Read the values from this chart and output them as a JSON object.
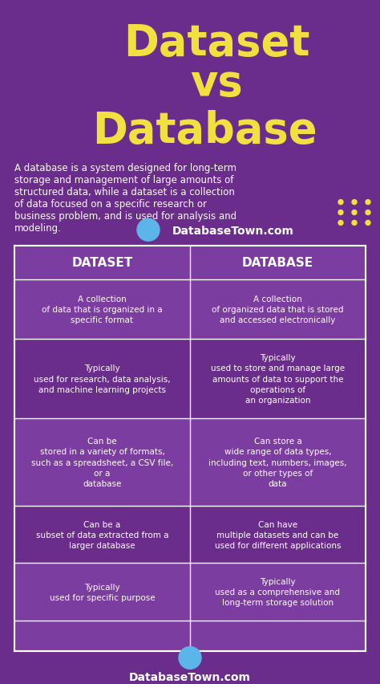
{
  "bg_color": "#6B2D8B",
  "title_line1": "Dataset",
  "title_line2": "vs",
  "title_line3": "Database",
  "title_color": "#F0E040",
  "description": "A database is a system designed for long-term\nstorage and management of large amounts of\nstructured data, while a dataset is a collection\nof data focused on a specific research or\nbusiness problem, and is used for analysis and\nmodeling.",
  "desc_color": "#FFFFFF",
  "website": "DatabaseTown.com",
  "website_color": "#FFFFFF",
  "table_bg": "#7B3DA0",
  "table_border": "#FFFFFF",
  "header_bg": "#7B3DA0",
  "header_text_color": "#FFFFFF",
  "cell_text_color": "#FFFFFF",
  "col1_header": "DATASET",
  "col2_header": "DATABASE",
  "rows": [
    {
      "col1": "A collection\nof data that is organized in a\nspecific format",
      "col2": "A collection\nof organized data that is stored\nand accessed electronically"
    },
    {
      "col1": "Typically\nused for research, data analysis,\nand machine learning projects",
      "col2": "Typically\nused to store and manage large\namounts of data to support the\noperations of\nan organization"
    },
    {
      "col1": "Can be\nstored in a variety of formats,\nsuch as a spreadsheet, a CSV file,\nor a\ndatabase",
      "col2": "Can store a\nwide range of data types,\nincluding text, numbers, images,\nor other types of\ndata"
    },
    {
      "col1": "Can be a\nsubset of data extracted from a\nlarger database",
      "col2": "Can have\nmultiple datasets and can be\nused for different applications"
    },
    {
      "col1": "Typically\nused for specific purpose",
      "col2": "Typically\nused as a comprehensive and\nlong-term storage solution"
    }
  ]
}
